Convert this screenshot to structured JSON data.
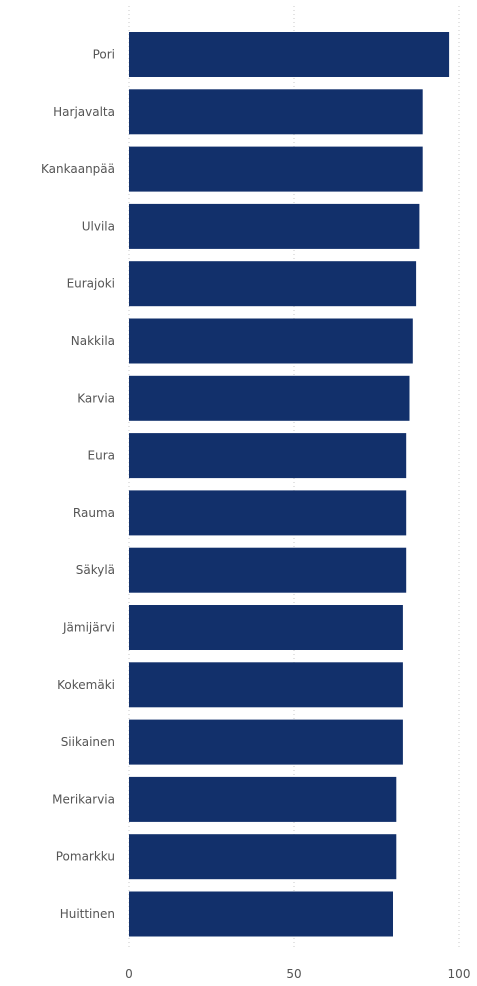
{
  "chart_data": {
    "type": "bar",
    "orientation": "horizontal",
    "categories": [
      "Pori",
      "Harjavalta",
      "Kankaanpää",
      "Ulvila",
      "Eurajoki",
      "Nakkila",
      "Karvia",
      "Eura",
      "Rauma",
      "Säkylä",
      "Jämijärvi",
      "Kokemäki",
      "Siikainen",
      "Merikarvia",
      "Pomarkku",
      "Huittinen"
    ],
    "values": [
      97,
      89,
      89,
      88,
      87,
      86,
      85,
      84,
      84,
      84,
      83,
      83,
      83,
      81,
      81,
      80
    ],
    "title": "",
    "xlabel": "",
    "ylabel": "",
    "xlim": [
      0,
      100
    ],
    "x_ticks": [
      0,
      50,
      100
    ],
    "x_tick_labels": [
      "0",
      "50",
      "100"
    ],
    "grid": true,
    "bar_color": "#12306b"
  }
}
